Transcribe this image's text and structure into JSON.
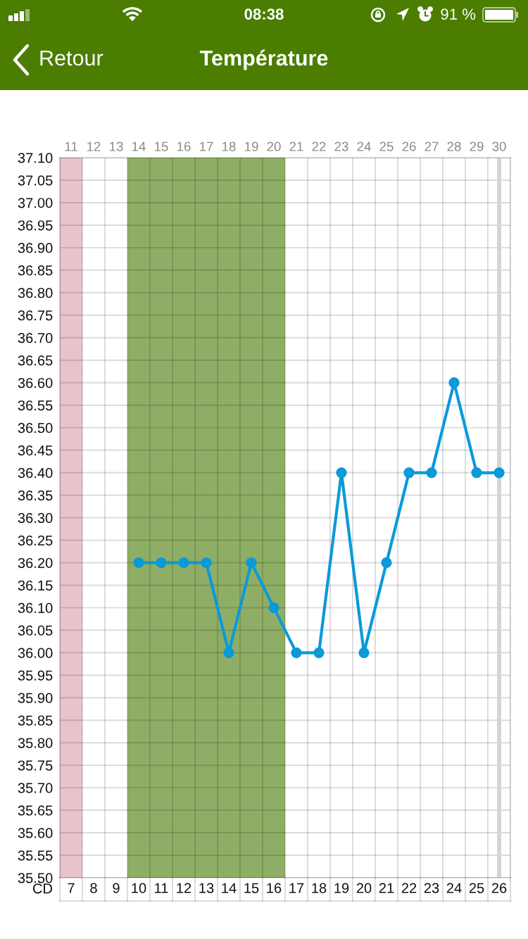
{
  "chart_data": {
    "type": "line",
    "title": "Température",
    "xlabel": "CD",
    "annotations": [
      "08:38",
      "91 %",
      "Retour"
    ],
    "x": [
      10,
      11,
      12,
      13,
      14,
      15,
      16,
      17,
      18,
      19,
      20,
      21,
      22,
      23,
      24,
      25,
      26
    ],
    "series": [
      {
        "color": "#0a9ad9",
        "values": [
          36.2,
          36.2,
          36.2,
          36.2,
          36.0,
          36.2,
          36.1,
          36.0,
          36.0,
          36.4,
          36.0,
          36.2,
          36.4,
          36.4,
          36.6,
          36.4,
          36.4
        ]
      }
    ],
    "xlim": [
      6.5,
      26.5
    ],
    "xticks": [
      7,
      8,
      9,
      10,
      11,
      12,
      13,
      14,
      15,
      16,
      17,
      18,
      19,
      20,
      21,
      22,
      23,
      24,
      25,
      26
    ],
    "x2lim": [
      10.5,
      30.5
    ],
    "x2ticks": [
      11,
      12,
      13,
      14,
      15,
      16,
      17,
      18,
      19,
      20,
      21,
      22,
      23,
      24,
      25,
      26,
      27,
      28,
      29,
      30
    ],
    "ylim": [
      35.5,
      37.1
    ],
    "yticks": [
      {
        "value": 35.5,
        "label": "35.50"
      },
      {
        "value": 35.55,
        "label": "35.55"
      },
      {
        "value": 35.6,
        "label": "35.60"
      },
      {
        "value": 35.65,
        "label": "35.65"
      },
      {
        "value": 35.7,
        "label": "35.70"
      },
      {
        "value": 35.75,
        "label": "35.75"
      },
      {
        "value": 35.8,
        "label": "35.80"
      },
      {
        "value": 35.85,
        "label": "35.85"
      },
      {
        "value": 35.9,
        "label": "35.90"
      },
      {
        "value": 35.95,
        "label": "35.95"
      },
      {
        "value": 36.0,
        "label": "36.00"
      },
      {
        "value": 36.05,
        "label": "36.05"
      },
      {
        "value": 36.1,
        "label": "36.10"
      },
      {
        "value": 36.15,
        "label": "36.15"
      },
      {
        "value": 36.2,
        "label": "36.20"
      },
      {
        "value": 36.25,
        "label": "36.25"
      },
      {
        "value": 36.3,
        "label": "36.30"
      },
      {
        "value": 36.35,
        "label": "36.35"
      },
      {
        "value": 36.4,
        "label": "36.40"
      },
      {
        "value": 36.45,
        "label": "36.45"
      },
      {
        "value": 36.5,
        "label": "36.50"
      },
      {
        "value": 36.55,
        "label": "36.55"
      },
      {
        "value": 36.6,
        "label": "36.60"
      },
      {
        "value": 36.65,
        "label": "36.65"
      },
      {
        "value": 36.7,
        "label": "36.70"
      },
      {
        "value": 36.75,
        "label": "36.75"
      },
      {
        "value": 36.8,
        "label": "36.80"
      },
      {
        "value": 36.85,
        "label": "36.85"
      },
      {
        "value": 36.9,
        "label": "36.90"
      },
      {
        "value": 36.95,
        "label": "36.95"
      },
      {
        "value": 37.0,
        "label": "37.00"
      },
      {
        "value": 37.05,
        "label": "37.05"
      },
      {
        "value": 37.1,
        "label": "37.10"
      }
    ],
    "bands": [
      {
        "axis": "x",
        "from": 6.5,
        "to": 7.5,
        "color": "#e9c2cc"
      },
      {
        "axis": "x",
        "from": 9.5,
        "to": 16.5,
        "color": "#8fae65"
      }
    ],
    "ref_lines": [
      {
        "axis": "x",
        "value": 26,
        "color": "#d4d4d4"
      }
    ],
    "grid": true,
    "marker": "circle",
    "line_style": "solid"
  }
}
